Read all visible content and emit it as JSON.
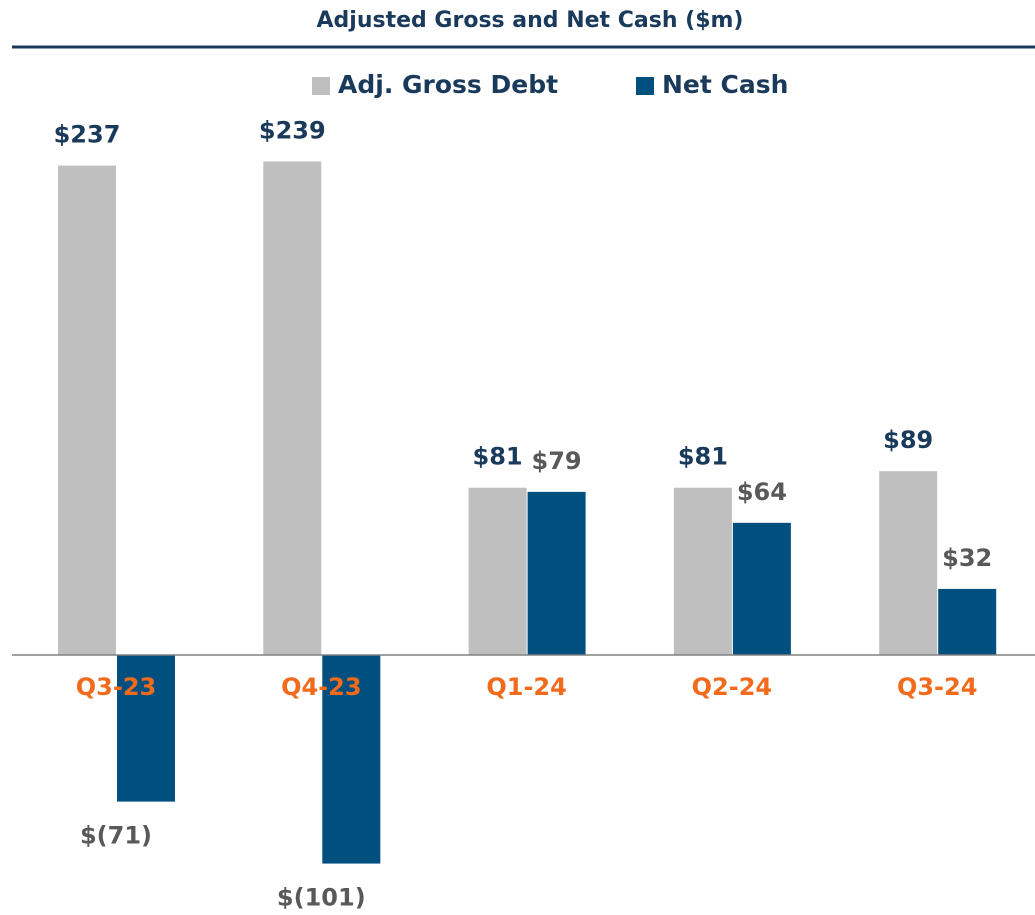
{
  "chart_data": {
    "type": "bar",
    "title": "Adjusted Gross and Net Cash ($m)",
    "categories": [
      "Q3-23",
      "Q4-23",
      "Q1-24",
      "Q2-24",
      "Q3-24"
    ],
    "series": [
      {
        "name": "Adj. Gross Debt",
        "color": "#bfbfbf",
        "values": [
          237,
          239,
          81,
          81,
          89
        ],
        "value_labels": [
          "$237",
          "$239",
          "$81",
          "$81",
          "$89"
        ]
      },
      {
        "name": "Net Cash",
        "color": "#00507f",
        "values": [
          -71,
          -101,
          79,
          64,
          32
        ],
        "value_labels": [
          "$(71)",
          "$(101)",
          "$79",
          "$64",
          "$32"
        ]
      }
    ],
    "legend": "top"
  }
}
